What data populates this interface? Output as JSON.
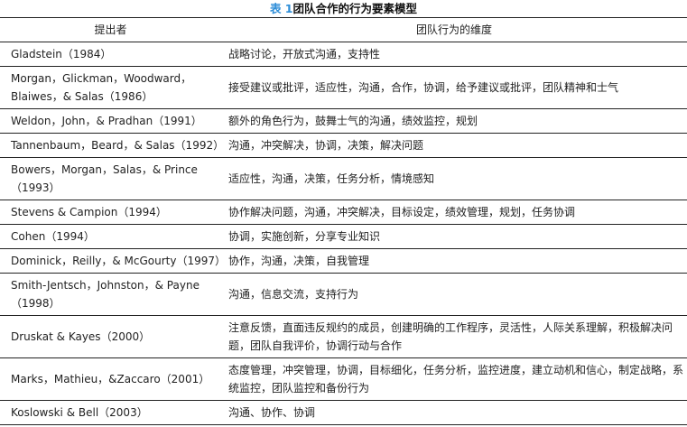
{
  "title": {
    "number": "表 1",
    "text": "团队合作的行为要素模型"
  },
  "columns": [
    "提出者",
    "团队行为的维度"
  ],
  "rows": [
    {
      "author": "Gladstein（1984）",
      "dims": "战略讨论，开放式沟通，支持性",
      "lines": 1
    },
    {
      "author": "Morgan，Glickman，Woodward，Blaiwes，& Salas（1986）",
      "dims": "接受建议或批评，适应性，沟通，合作，协调，给予建议或批评，团队精神和士气",
      "lines": 2
    },
    {
      "author": "Weldon，John，& Pradhan（1991）",
      "dims": "额外的角色行为，鼓舞士气的沟通，绩效监控，规划",
      "lines": 1
    },
    {
      "author": "Tannenbaum，Beard，& Salas（1992）",
      "dims": "沟通，冲突解决，协调，决策，解决问题",
      "lines": 1
    },
    {
      "author": "Bowers，Morgan，Salas，& Prince（1993）",
      "dims": "适应性，沟通，决策，任务分析，情境感知",
      "lines": 2
    },
    {
      "author": "Stevens & Campion（1994）",
      "dims": "协作解决问题，沟通，冲突解决，目标设定，绩效管理，规划，任务协调",
      "lines": 1
    },
    {
      "author": "Cohen（1994）",
      "dims": "协调，实施创新，分享专业知识",
      "lines": 1
    },
    {
      "author": "Dominick，Reilly，& McGourty（1997）",
      "dims": "协作，沟通，决策，自我管理",
      "lines": 1
    },
    {
      "author": "Smith-Jentsch，Johnston，& Payne（1998）",
      "dims": "沟通，信息交流，支持行为",
      "lines": 2
    },
    {
      "author": "Druskat & Kayes（2000）",
      "dims": "注意反馈，直面违反规约的成员，创建明确的工作程序，灵活性，人际关系理解，积极解决问题，团队自我评价，协调行动与合作",
      "lines": 2
    },
    {
      "author": "Marks，Mathieu，&Zaccaro（2001）",
      "dims": "态度管理，冲突管理，协调，目标细化，任务分析，监控进度，建立动机和信心，制定战略，系统监控，团队监控和备份行为",
      "lines": 2
    },
    {
      "author": "Koslowski & Bell（2003）",
      "dims": "沟通、协作、协调",
      "lines": 1
    }
  ],
  "colors": {
    "title_number": "#2e8ed8",
    "rule": "#222222"
  }
}
